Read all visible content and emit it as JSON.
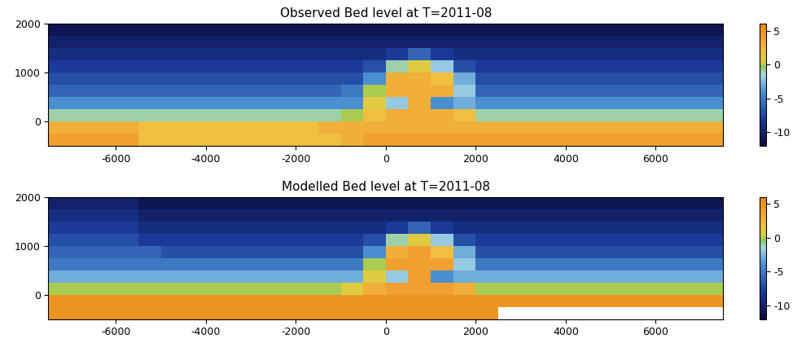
{
  "chart_data": [
    {
      "type": "heatmap",
      "title": "Observed Bed level at T=2011-08",
      "xlim": [
        -7500,
        7500
      ],
      "xticks": [
        -6000,
        -4000,
        -2000,
        0,
        2000,
        4000,
        6000
      ],
      "ylim": [
        -500,
        2000
      ],
      "yticks": [
        0,
        1000,
        2000
      ],
      "x_edges": [
        -7500,
        -7000,
        -6500,
        -6000,
        -5500,
        -5000,
        -4500,
        -4000,
        -3500,
        -3000,
        -2500,
        -2000,
        -1500,
        -1000,
        -500,
        0,
        500,
        1000,
        1500,
        2000,
        2500,
        3000,
        3500,
        4000,
        4500,
        5000,
        5500,
        6000,
        6500,
        7000,
        7500
      ],
      "y_edges": [
        -500,
        -250,
        0,
        250,
        500,
        750,
        1000,
        1250,
        1500,
        1750,
        2000
      ],
      "cells": [
        [
          4,
          4,
          4,
          4,
          2,
          2,
          2,
          2,
          2,
          2,
          2,
          2,
          2,
          3,
          4,
          4,
          4,
          4,
          4,
          4,
          4,
          4,
          4,
          4,
          4,
          4,
          4,
          4,
          4,
          4
        ],
        [
          3,
          3,
          3,
          3,
          2,
          2,
          2,
          2,
          2,
          2,
          2,
          2,
          3,
          3,
          3,
          3,
          3,
          3,
          3,
          3,
          3,
          3,
          3,
          3,
          3,
          3,
          3,
          3,
          3,
          3
        ],
        [
          -1,
          -1,
          -1,
          -1,
          -1,
          -1,
          -1,
          -1,
          -1,
          -1,
          -1,
          -1,
          -1,
          0,
          2,
          3,
          3,
          3,
          2,
          -1,
          -1,
          -1,
          -1,
          -1,
          -1,
          -1,
          -1,
          -1,
          -1,
          -1
        ],
        [
          -4,
          -4,
          -4,
          -4,
          -4,
          -4,
          -4,
          -4,
          -4,
          -4,
          -4,
          -4,
          -4,
          -4,
          1,
          -2,
          3,
          -4,
          -3,
          -4,
          -4,
          -4,
          -4,
          -4,
          -4,
          -4,
          -4,
          -4,
          -4,
          -4
        ],
        [
          -6,
          -6,
          -6,
          -6,
          -6,
          -6,
          -6,
          -6,
          -6,
          -6,
          -6,
          -6,
          -6,
          -5,
          0,
          3,
          3,
          3,
          -2,
          -6,
          -6,
          -6,
          -6,
          -6,
          -6,
          -6,
          -6,
          -6,
          -6,
          -6
        ],
        [
          -7,
          -7,
          -7,
          -7,
          -7,
          -7,
          -7,
          -7,
          -7,
          -7,
          -7,
          -7,
          -7,
          -7,
          -4,
          3,
          3,
          2,
          -3,
          -7,
          -7,
          -7,
          -7,
          -7,
          -7,
          -7,
          -7,
          -7,
          -7,
          -7
        ],
        [
          -8,
          -8,
          -8,
          -8,
          -8,
          -8,
          -8,
          -8,
          -8,
          -8,
          -8,
          -8,
          -8,
          -8,
          -7,
          -1,
          1,
          -2,
          -7,
          -8,
          -8,
          -8,
          -8,
          -8,
          -8,
          -8,
          -8,
          -8,
          -8,
          -8
        ],
        [
          -9,
          -9,
          -9,
          -9,
          -9,
          -9,
          -9,
          -9,
          -9,
          -9,
          -9,
          -9,
          -9,
          -9,
          -9,
          -8,
          -6,
          -8,
          -9,
          -9,
          -9,
          -9,
          -9,
          -9,
          -9,
          -9,
          -9,
          -9,
          -9,
          -9
        ],
        [
          -10,
          -10,
          -10,
          -10,
          -10,
          -10,
          -10,
          -10,
          -10,
          -10,
          -10,
          -10,
          -10,
          -10,
          -10,
          -10,
          -10,
          -10,
          -10,
          -10,
          -10,
          -10,
          -10,
          -10,
          -10,
          -10,
          -10,
          -10,
          -10,
          -10
        ],
        [
          -11,
          -11,
          -11,
          -11,
          -11,
          -11,
          -11,
          -11,
          -11,
          -11,
          -11,
          -11,
          -11,
          -11,
          -11,
          -11,
          -11,
          -11,
          -11,
          -11,
          -11,
          -11,
          -11,
          -11,
          -11,
          -11,
          -11,
          -11,
          -11,
          -11
        ]
      ],
      "colorbar_range": [
        -12,
        6
      ],
      "colorbar_ticks": [
        -10,
        -5,
        0,
        5
      ]
    },
    {
      "type": "heatmap",
      "title": "Modelled Bed level at T=2011-08",
      "xlim": [
        -7500,
        7500
      ],
      "xticks": [
        -6000,
        -4000,
        -2000,
        0,
        2000,
        4000,
        6000
      ],
      "ylim": [
        -500,
        2000
      ],
      "yticks": [
        0,
        1000,
        2000
      ],
      "x_edges": [
        -7500,
        -7000,
        -6500,
        -6000,
        -5500,
        -5000,
        -4500,
        -4000,
        -3500,
        -3000,
        -2500,
        -2000,
        -1500,
        -1000,
        -500,
        0,
        500,
        1000,
        1500,
        2000,
        2500,
        3000,
        3500,
        4000,
        4500,
        5000,
        5500,
        6000,
        6500,
        7000,
        7500
      ],
      "y_edges": [
        -500,
        -250,
        0,
        250,
        500,
        750,
        1000,
        1250,
        1500,
        1750,
        2000
      ],
      "cells": [
        [
          5,
          5,
          5,
          5,
          5,
          5,
          5,
          5,
          5,
          5,
          5,
          5,
          5,
          5,
          5,
          5,
          5,
          5,
          5,
          5,
          null,
          null,
          null,
          null,
          null,
          null,
          null,
          null,
          null,
          null
        ],
        [
          5,
          5,
          5,
          5,
          5,
          5,
          5,
          5,
          5,
          5,
          5,
          5,
          5,
          5,
          5,
          5,
          5,
          5,
          5,
          5,
          5,
          5,
          5,
          5,
          5,
          5,
          5,
          5,
          5,
          5
        ],
        [
          0,
          0,
          0,
          0,
          0,
          0,
          0,
          0,
          0,
          0,
          0,
          0,
          0,
          1,
          3,
          4,
          4,
          4,
          3,
          0,
          0,
          0,
          0,
          0,
          0,
          0,
          0,
          0,
          0,
          0
        ],
        [
          -3,
          -3,
          -3,
          -3,
          -3,
          -3,
          -3,
          -3,
          -3,
          -3,
          -3,
          -3,
          -3,
          -3,
          1,
          -2,
          4,
          -4,
          -3,
          -3,
          -3,
          -3,
          -3,
          -3,
          -3,
          -3,
          -3,
          -3,
          -3,
          -3
        ],
        [
          -5,
          -5,
          -5,
          -5,
          -5,
          -5,
          -5,
          -5,
          -5,
          -5,
          -5,
          -5,
          -5,
          -5,
          0,
          4,
          4,
          4,
          -2,
          -5,
          -5,
          -5,
          -5,
          -5,
          -5,
          -5,
          -5,
          -5,
          -5,
          -5
        ],
        [
          -6,
          -6,
          -6,
          -6,
          -6,
          -7,
          -7,
          -7,
          -7,
          -7,
          -7,
          -7,
          -7,
          -7,
          -4,
          3,
          4,
          2,
          -3,
          -7,
          -7,
          -7,
          -7,
          -7,
          -7,
          -7,
          -7,
          -7,
          -7,
          -7
        ],
        [
          -7,
          -7,
          -7,
          -7,
          -8,
          -8,
          -8,
          -8,
          -8,
          -8,
          -8,
          -8,
          -8,
          -8,
          -7,
          -1,
          1,
          -2,
          -7,
          -8,
          -8,
          -8,
          -8,
          -8,
          -8,
          -8,
          -8,
          -8,
          -8,
          -8
        ],
        [
          -8,
          -8,
          -8,
          -8,
          -9,
          -9,
          -9,
          -9,
          -9,
          -9,
          -9,
          -9,
          -9,
          -9,
          -9,
          -8,
          -6,
          -8,
          -9,
          -9,
          -9,
          -9,
          -9,
          -9,
          -9,
          -9,
          -9,
          -9,
          -9,
          -9
        ],
        [
          -9,
          -9,
          -9,
          -9,
          -10,
          -10,
          -10,
          -10,
          -10,
          -10,
          -10,
          -10,
          -10,
          -10,
          -10,
          -10,
          -10,
          -10,
          -10,
          -10,
          -10,
          -10,
          -10,
          -10,
          -10,
          -10,
          -10,
          -10,
          -10,
          -10
        ],
        [
          -10,
          -10,
          -10,
          -10,
          -11,
          -11,
          -11,
          -11,
          -11,
          -11,
          -11,
          -11,
          -11,
          -11,
          -11,
          -11,
          -11,
          -11,
          -11,
          -11,
          -11,
          -11,
          -11,
          -11,
          -11,
          -11,
          -11,
          -11,
          -11,
          -11
        ]
      ],
      "colorbar_range": [
        -12,
        6
      ],
      "colorbar_ticks": [
        -10,
        -5,
        0,
        5
      ]
    }
  ]
}
